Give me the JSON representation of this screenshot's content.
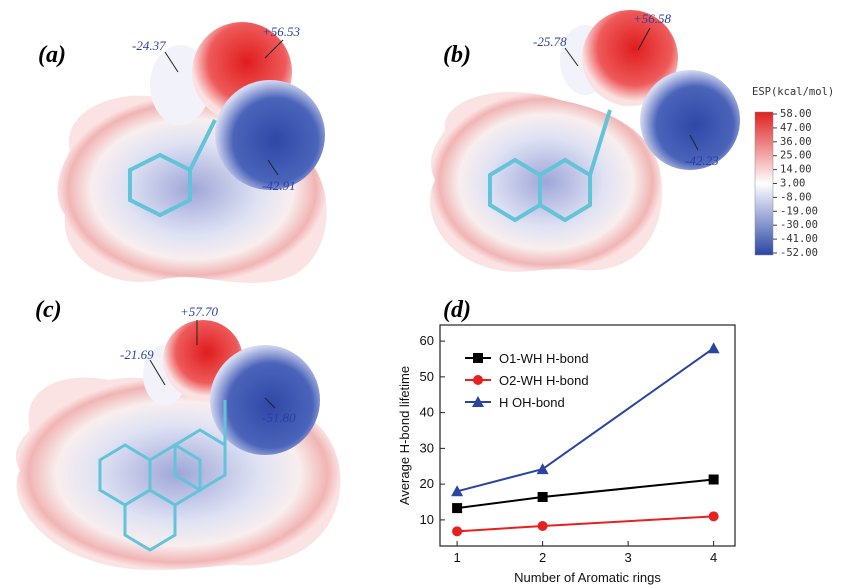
{
  "panels": [
    {
      "label": "(a)",
      "annotations": [
        "-24.37",
        "+56.53",
        "-42.91"
      ]
    },
    {
      "label": "(b)",
      "annotations": [
        "-25.78",
        "+56.58",
        "-42.23"
      ]
    },
    {
      "label": "(c)",
      "annotations": [
        "+57.70",
        "-21.69",
        "-51.80"
      ]
    },
    {
      "label": "(d)"
    }
  ],
  "colorbar": {
    "title": "ESP(kcal/mol)",
    "ticks": [
      {
        "value": 58,
        "label": "58.00"
      },
      {
        "value": 47,
        "label": "47.00"
      },
      {
        "value": 36,
        "label": "36.00"
      },
      {
        "value": 25,
        "label": "25.00"
      },
      {
        "value": 14,
        "label": "14.00"
      },
      {
        "value": 3,
        "label": "3.00"
      },
      {
        "value": -8,
        "label": "-8.00"
      },
      {
        "value": -19,
        "label": "-19.00"
      },
      {
        "value": -30,
        "label": "-30.00"
      },
      {
        "value": -41,
        "label": "-41.00"
      },
      {
        "value": -52,
        "label": "-52.00"
      }
    ]
  },
  "chart_data": {
    "type": "line",
    "xlabel": "Number of Aromatic rings",
    "ylabel": "Average H-bond lifetime",
    "x": [
      1,
      2,
      4
    ],
    "series": [
      {
        "name": "O1-WH H-bond",
        "color": "#000000",
        "marker": "square",
        "values": [
          13.3,
          16.4,
          21.3
        ]
      },
      {
        "name": "O2-WH H-bond",
        "color": "#e8201e",
        "marker": "circle",
        "values": [
          6.8,
          8.3,
          11.0
        ]
      },
      {
        "name": "H OH-bond",
        "color": "#2b44a0",
        "marker": "triangle",
        "values": [
          18.0,
          24.2,
          58.0
        ]
      }
    ],
    "xlim": [
      0.8,
      4.25
    ],
    "ylim": [
      2.7,
      64.5
    ],
    "xticks": [
      1,
      2,
      3,
      4
    ],
    "yticks": [
      10,
      20,
      30,
      40,
      50,
      60
    ],
    "grid": false,
    "legend": "upper left"
  }
}
